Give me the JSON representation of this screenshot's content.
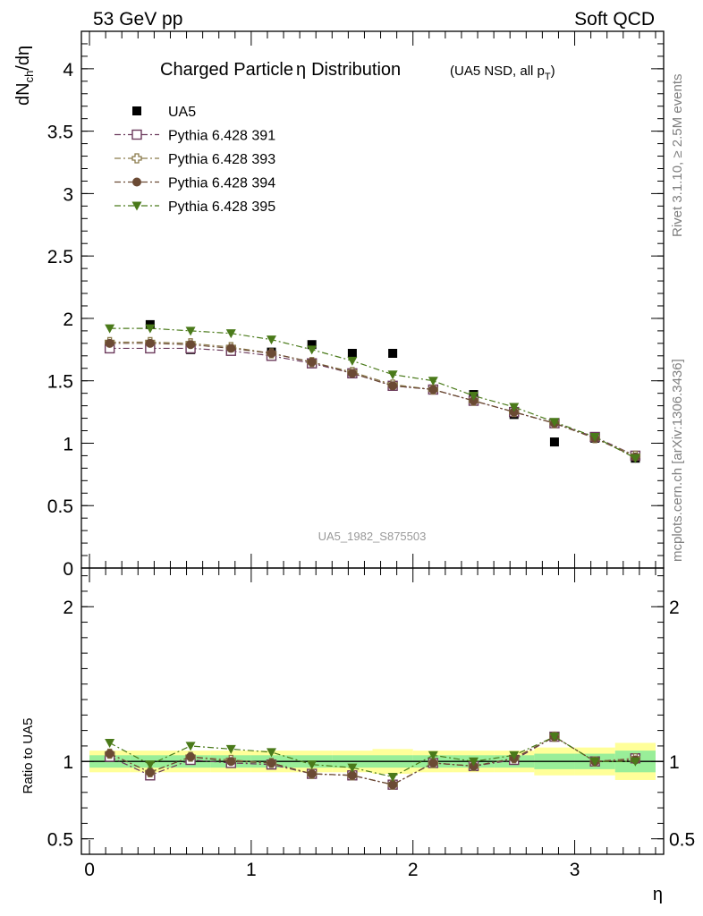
{
  "header": {
    "left": "53 GeV pp",
    "right": "Soft QCD"
  },
  "side_labels": {
    "rivet": "Rivet 3.1.10, ≥ 2.5M events",
    "mcplots": "mcplots.cern.ch [arXiv:1306.3436]"
  },
  "watermark": "UA5_1982_S875503",
  "chart_data": [
    {
      "type": "scatter",
      "panel": "main",
      "title": "Charged Particle",
      "title_symbol": "η",
      "title_tail": "Distribution",
      "subtitle": "(UA5 NSD, all p",
      "subtitle_sub": "T",
      "subtitle_end": ")",
      "ylabel": "dN",
      "ylabel_sub": "ch",
      "ylabel_end": "/dη",
      "xlabel": "η",
      "xlim": [
        -0.05,
        3.55
      ],
      "ylim": [
        0,
        4.3
      ],
      "yticks": [
        {
          "v": 0,
          "label": "0"
        },
        {
          "v": 0.5,
          "label": "0.5"
        },
        {
          "v": 1,
          "label": "1"
        },
        {
          "v": 1.5,
          "label": "1.5"
        },
        {
          "v": 2,
          "label": "2"
        },
        {
          "v": 2.5,
          "label": "2.5"
        },
        {
          "v": 3,
          "label": "3"
        },
        {
          "v": 3.5,
          "label": "3.5"
        },
        {
          "v": 4,
          "label": "4"
        }
      ],
      "x": [
        0.125,
        0.375,
        0.625,
        0.875,
        1.125,
        1.375,
        1.625,
        1.875,
        2.125,
        2.375,
        2.625,
        2.875,
        3.125,
        3.375
      ],
      "series": [
        {
          "name": "UA5",
          "marker": "filled-square",
          "color": "#000000",
          "line": false,
          "values": [
            null,
            1.95,
            1.75,
            1.75,
            1.73,
            1.79,
            1.72,
            1.72,
            null,
            1.39,
            1.23,
            1.01,
            1.04,
            0.88
          ]
        },
        {
          "name": "Pythia 6.428 391",
          "marker": "open-square",
          "color": "#6b3a5c",
          "line": true,
          "values": [
            1.76,
            1.76,
            1.76,
            1.74,
            1.7,
            1.64,
            1.56,
            1.46,
            1.43,
            1.34,
            1.25,
            1.16,
            1.05,
            0.9
          ]
        },
        {
          "name": "Pythia 6.428 393",
          "marker": "open-cross",
          "color": "#8a7a4a",
          "line": true,
          "values": [
            1.81,
            1.81,
            1.8,
            1.77,
            1.72,
            1.65,
            1.57,
            1.47,
            1.43,
            1.34,
            1.25,
            1.16,
            1.04,
            0.9
          ]
        },
        {
          "name": "Pythia 6.428 394",
          "marker": "filled-circle",
          "color": "#6b4a34",
          "line": true,
          "values": [
            1.8,
            1.8,
            1.79,
            1.76,
            1.72,
            1.65,
            1.56,
            1.46,
            1.43,
            1.34,
            1.25,
            1.16,
            1.04,
            0.89
          ]
        },
        {
          "name": "Pythia 6.428 395",
          "marker": "filled-triangle-down",
          "color": "#4a7a1a",
          "line": true,
          "values": [
            1.92,
            1.92,
            1.9,
            1.88,
            1.83,
            1.75,
            1.66,
            1.55,
            1.5,
            1.38,
            1.29,
            1.17,
            1.05,
            0.88
          ]
        }
      ],
      "legend_position": "top-left"
    },
    {
      "type": "scatter",
      "panel": "ratio",
      "ylabel": "Ratio to UA5",
      "xlabel": "η",
      "xlim": [
        -0.05,
        3.55
      ],
      "ylim": [
        0.4,
        2.25
      ],
      "yticks": [
        {
          "v": 0.5,
          "label": "0.5"
        },
        {
          "v": 1,
          "label": "1"
        },
        {
          "v": 2,
          "label": "2"
        }
      ],
      "xticks": [
        {
          "v": 0,
          "label": "0"
        },
        {
          "v": 1,
          "label": "1"
        },
        {
          "v": 2,
          "label": "2"
        },
        {
          "v": 3,
          "label": "3"
        }
      ],
      "x": [
        0.125,
        0.375,
        0.625,
        0.875,
        1.125,
        1.375,
        1.625,
        1.875,
        2.125,
        2.375,
        2.625,
        2.875,
        3.125,
        3.375
      ],
      "band_edges": [
        0.0,
        0.25,
        0.5,
        0.75,
        1.0,
        1.25,
        1.5,
        1.75,
        2.0,
        2.25,
        2.5,
        2.75,
        3.0,
        3.25,
        3.5
      ],
      "band_inner": [
        0.04,
        0.04,
        0.04,
        0.04,
        0.04,
        0.04,
        0.04,
        0.04,
        0.04,
        0.04,
        0.04,
        0.05,
        0.05,
        0.07
      ],
      "band_outer": [
        0.07,
        0.07,
        0.07,
        0.07,
        0.07,
        0.07,
        0.07,
        0.08,
        0.07,
        0.07,
        0.07,
        0.09,
        0.09,
        0.12
      ],
      "series": [
        {
          "name": "Pythia 6.428 391",
          "marker": "open-square",
          "color": "#6b3a5c",
          "values": [
            1.03,
            0.91,
            1.01,
            0.99,
            0.98,
            0.92,
            0.91,
            0.85,
            0.99,
            0.97,
            1.01,
            1.16,
            1.0,
            1.02
          ]
        },
        {
          "name": "Pythia 6.428 393",
          "marker": "open-cross",
          "color": "#8a7a4a",
          "values": [
            1.05,
            0.93,
            1.03,
            1.01,
            0.99,
            0.92,
            0.91,
            0.85,
            0.99,
            0.97,
            1.02,
            1.16,
            1.0,
            1.02
          ]
        },
        {
          "name": "Pythia 6.428 394",
          "marker": "filled-circle",
          "color": "#6b4a34",
          "values": [
            1.05,
            0.93,
            1.03,
            1.0,
            0.99,
            0.92,
            0.91,
            0.85,
            0.99,
            0.97,
            1.02,
            1.16,
            1.0,
            1.01
          ]
        },
        {
          "name": "Pythia 6.428 395",
          "marker": "filled-triangle-down",
          "color": "#4a7a1a",
          "values": [
            1.12,
            0.98,
            1.1,
            1.08,
            1.06,
            0.98,
            0.96,
            0.9,
            1.04,
            1.0,
            1.04,
            1.16,
            1.0,
            1.0
          ]
        }
      ]
    }
  ]
}
